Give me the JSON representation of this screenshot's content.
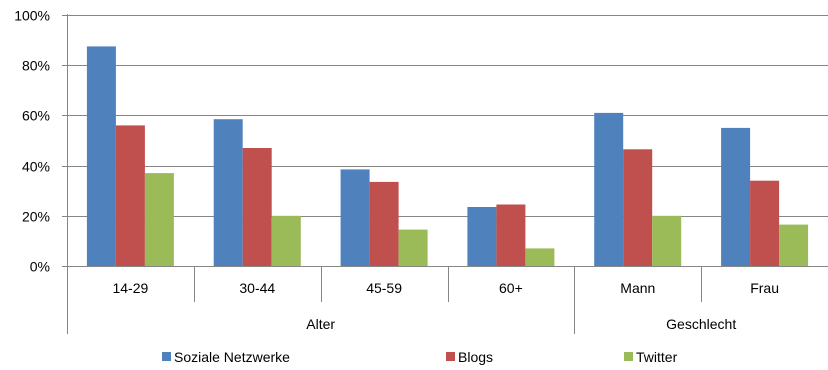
{
  "chart_data": {
    "type": "bar",
    "title": "",
    "xlabel": "",
    "ylabel": "",
    "ylim": [
      0,
      100
    ],
    "yticks": [
      0,
      20,
      40,
      60,
      80,
      100
    ],
    "ytick_suffix": "%",
    "grid": true,
    "legend": "bottom",
    "categories": [
      "14-29",
      "30-44",
      "45-59",
      "60+",
      "Mann",
      "Frau"
    ],
    "groups": [
      {
        "label": "Alter",
        "categories": [
          "14-29",
          "30-44",
          "45-59",
          "60+"
        ]
      },
      {
        "label": "Geschlecht",
        "categories": [
          "Mann",
          "Frau"
        ]
      }
    ],
    "series": [
      {
        "name": "Soziale Netzwerke",
        "color": "#4F81BD",
        "values": [
          87.5,
          58.5,
          38.5,
          23.5,
          61,
          55
        ]
      },
      {
        "name": "Blogs",
        "color": "#C0504D",
        "values": [
          56,
          47,
          33.5,
          24.5,
          46.5,
          34
        ]
      },
      {
        "name": "Twitter",
        "color": "#9BBB59",
        "values": [
          37,
          20,
          14.5,
          7,
          20,
          16.5
        ]
      }
    ]
  }
}
